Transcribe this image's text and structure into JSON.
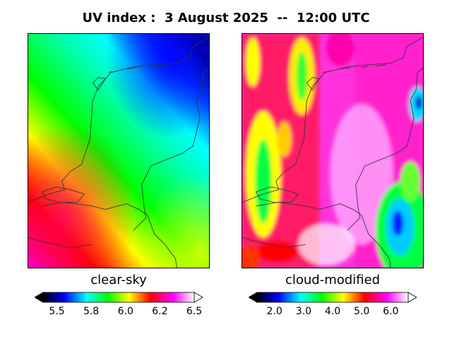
{
  "title": "UV index :  3 August 2025  --  12:00 UTC",
  "panels": [
    {
      "caption": "clear-sky",
      "colorbar": {
        "min": 5.4,
        "max": 6.5,
        "ticks": [
          "5.5",
          "5.8",
          "6.0",
          "6.2",
          "6.5"
        ],
        "tick_values": [
          5.5,
          5.75,
          6.0,
          6.25,
          6.5
        ]
      }
    },
    {
      "caption": "cloud-modified",
      "colorbar": {
        "min": 1.4,
        "max": 6.6,
        "ticks": [
          "2.0",
          "3.0",
          "4.0",
          "5.0",
          "6.0"
        ],
        "tick_values": [
          2.0,
          3.0,
          4.0,
          5.0,
          6.0
        ]
      }
    }
  ],
  "colors": {
    "palette": [
      "#000000",
      "#0000ff",
      "#00ffff",
      "#00ff00",
      "#ffff00",
      "#ff0000",
      "#ff00ff",
      "#ffffff"
    ],
    "border": "#333333"
  }
}
